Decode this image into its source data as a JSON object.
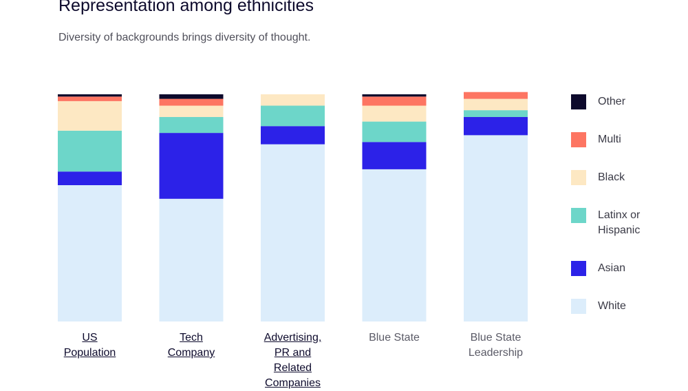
{
  "header": {
    "title": "Representation among ethnicities",
    "subtitle": "Diversity of backgrounds brings diversity of thought."
  },
  "chart_data": {
    "type": "bar",
    "stacked": true,
    "ylim": [
      0,
      100
    ],
    "grid": false,
    "legend_placement": "right",
    "categories": [
      "US Population",
      "Tech Company",
      "Advertising, PR and Related Companies",
      "Blue State",
      "Blue State Leadership"
    ],
    "category_links": [
      true,
      true,
      true,
      false,
      false
    ],
    "series": [
      {
        "name": "White",
        "color": "#dcedfb",
        "values": [
          60,
          54,
          78,
          67,
          82
        ]
      },
      {
        "name": "Asian",
        "color": "#2c22e8",
        "values": [
          6,
          29,
          8,
          12,
          8
        ]
      },
      {
        "name": "Latinx or Hispanic",
        "color": "#6dd6c9",
        "values": [
          18,
          7,
          9,
          9,
          3
        ]
      },
      {
        "name": "Black",
        "color": "#fde8c3",
        "values": [
          13,
          5,
          5,
          7,
          5
        ]
      },
      {
        "name": "Multi",
        "color": "#fd7562",
        "values": [
          2,
          3,
          0,
          4,
          3
        ]
      },
      {
        "name": "Other",
        "color": "#0d0a2c",
        "values": [
          1,
          2,
          0,
          1,
          0
        ]
      }
    ],
    "legend_order": [
      "Other",
      "Multi",
      "Black",
      "Latinx or Hispanic",
      "Asian",
      "White"
    ]
  }
}
